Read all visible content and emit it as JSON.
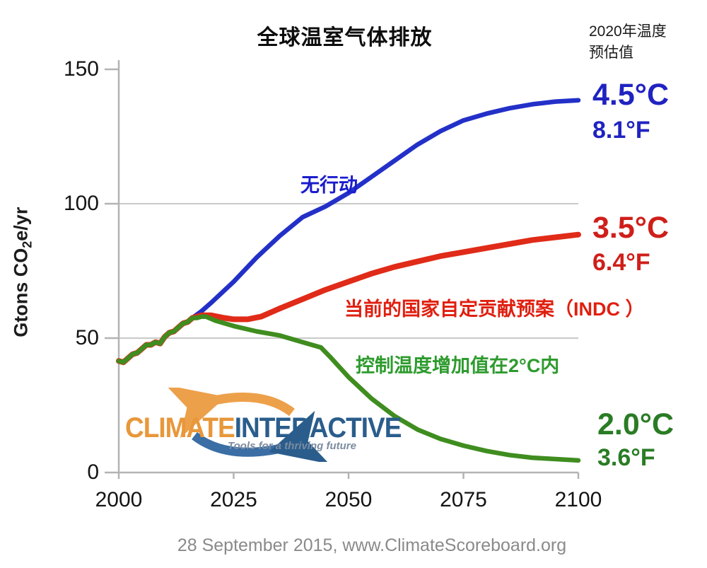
{
  "title": "全球温室气体排放",
  "top_right_note": {
    "line1": "2020年温度",
    "line2": "预估值"
  },
  "y_axis": {
    "label_prefix": "Gtons CO",
    "label_sub": "2",
    "label_suffix": "e/yr"
  },
  "footer": "28 September 2015, www.ClimateScoreboard.org",
  "logo": {
    "word1": "CLIMATE",
    "word2": "INTERACTIVE",
    "tagline": "Tools for a thriving future"
  },
  "callouts": {
    "no_action": "无行动",
    "indc": "当前的国家自定贡献预案（INDC ）",
    "two_degree": "控制温度增加值在2°C内"
  },
  "temp_labels": {
    "blue": {
      "c": "4.5°C",
      "f": "8.1°F",
      "color": "#2023c0"
    },
    "red": {
      "c": "3.5°C",
      "f": "6.4°F",
      "color": "#cf1f1a"
    },
    "green": {
      "c": "2.0°C",
      "f": "3.6°F",
      "color": "#2a7c24"
    }
  },
  "colors": {
    "axis": "#b3b3b3",
    "grid": "#c9c9c9",
    "blue_line": "#2330c8",
    "red_line": "#e02b18",
    "green_line": "#3f8d1f",
    "callout_blue": "#1a1ccc",
    "callout_red": "#e01f10",
    "callout_green": "#2e9b2e"
  },
  "chart_data": {
    "type": "line",
    "title": "全球温室气体排放",
    "ylabel": "Gtons CO2e/yr",
    "xlabel": "",
    "xlim": [
      2000,
      2100
    ],
    "ylim": [
      0,
      150
    ],
    "yticks": [
      0,
      50,
      100,
      150
    ],
    "xticks": [
      2000,
      2025,
      2050,
      2075,
      2100
    ],
    "gridlines": [
      50,
      100
    ],
    "legend_position": "inline-annotations",
    "series": [
      {
        "name": "no-action",
        "label": "无行动",
        "temp_2100": "4.5°C / 8.1°F",
        "color": "#2330c8",
        "width": 6.5,
        "points": [
          [
            2000,
            41.5
          ],
          [
            2001,
            41
          ],
          [
            2002,
            42.5
          ],
          [
            2003,
            44
          ],
          [
            2004,
            44.5
          ],
          [
            2005,
            46
          ],
          [
            2006,
            47.5
          ],
          [
            2007,
            47.5
          ],
          [
            2008,
            48.5
          ],
          [
            2009,
            48
          ],
          [
            2010,
            50.5
          ],
          [
            2011,
            52
          ],
          [
            2012,
            52.5
          ],
          [
            2013,
            54
          ],
          [
            2014,
            55.5
          ],
          [
            2015,
            56
          ],
          [
            2016,
            57.5
          ],
          [
            2018,
            60
          ],
          [
            2020,
            63
          ],
          [
            2025,
            71
          ],
          [
            2030,
            80
          ],
          [
            2035,
            88
          ],
          [
            2040,
            95
          ],
          [
            2045,
            99
          ],
          [
            2050,
            104
          ],
          [
            2055,
            110
          ],
          [
            2060,
            116
          ],
          [
            2065,
            122
          ],
          [
            2070,
            127
          ],
          [
            2075,
            131
          ],
          [
            2080,
            133.5
          ],
          [
            2085,
            135.5
          ],
          [
            2090,
            137
          ],
          [
            2095,
            138
          ],
          [
            2100,
            138.5
          ]
        ]
      },
      {
        "name": "indc",
        "label": "当前的国家自定贡献预案（INDC ）",
        "temp_2100": "3.5°C / 6.4°F",
        "color": "#e02b18",
        "width": 8,
        "points": [
          [
            2000,
            41.5
          ],
          [
            2001,
            41
          ],
          [
            2002,
            42.5
          ],
          [
            2003,
            44
          ],
          [
            2004,
            44.5
          ],
          [
            2005,
            46
          ],
          [
            2006,
            47.5
          ],
          [
            2007,
            47.5
          ],
          [
            2008,
            48.5
          ],
          [
            2009,
            48
          ],
          [
            2010,
            50.5
          ],
          [
            2011,
            52
          ],
          [
            2012,
            52.5
          ],
          [
            2013,
            54
          ],
          [
            2014,
            55.5
          ],
          [
            2015,
            56
          ],
          [
            2016,
            57.5
          ],
          [
            2018,
            58.5
          ],
          [
            2020,
            58.5
          ],
          [
            2023,
            57.5
          ],
          [
            2025,
            57
          ],
          [
            2028,
            57
          ],
          [
            2031,
            58
          ],
          [
            2035,
            61
          ],
          [
            2040,
            64.5
          ],
          [
            2045,
            68
          ],
          [
            2050,
            71
          ],
          [
            2055,
            74
          ],
          [
            2060,
            76.5
          ],
          [
            2065,
            78.5
          ],
          [
            2070,
            80.5
          ],
          [
            2075,
            82
          ],
          [
            2080,
            83.5
          ],
          [
            2085,
            85
          ],
          [
            2090,
            86.5
          ],
          [
            2095,
            87.5
          ],
          [
            2100,
            88.5
          ]
        ]
      },
      {
        "name": "two-degree",
        "label": "控制温度增加值在2°C内",
        "temp_2100": "2.0°C / 3.6°F",
        "color": "#3f8d1f",
        "width": 6.5,
        "points": [
          [
            2000,
            41.5
          ],
          [
            2001,
            41
          ],
          [
            2002,
            42.5
          ],
          [
            2003,
            44
          ],
          [
            2004,
            44.5
          ],
          [
            2005,
            46
          ],
          [
            2006,
            47.5
          ],
          [
            2007,
            47.5
          ],
          [
            2008,
            48.5
          ],
          [
            2009,
            48
          ],
          [
            2010,
            50.5
          ],
          [
            2011,
            52
          ],
          [
            2012,
            52.5
          ],
          [
            2013,
            54
          ],
          [
            2014,
            55.5
          ],
          [
            2015,
            56
          ],
          [
            2016,
            57.5
          ],
          [
            2017,
            57.5
          ],
          [
            2018,
            58
          ],
          [
            2019,
            58
          ],
          [
            2021,
            56.5
          ],
          [
            2025,
            54.5
          ],
          [
            2030,
            52.5
          ],
          [
            2035,
            51
          ],
          [
            2040,
            48.5
          ],
          [
            2044,
            46.5
          ],
          [
            2046,
            43
          ],
          [
            2050,
            35.5
          ],
          [
            2055,
            27.5
          ],
          [
            2060,
            21
          ],
          [
            2065,
            16
          ],
          [
            2070,
            12.5
          ],
          [
            2075,
            10
          ],
          [
            2080,
            8
          ],
          [
            2085,
            6.5
          ],
          [
            2090,
            5.5
          ],
          [
            2095,
            5
          ],
          [
            2100,
            4.5
          ]
        ]
      }
    ]
  }
}
